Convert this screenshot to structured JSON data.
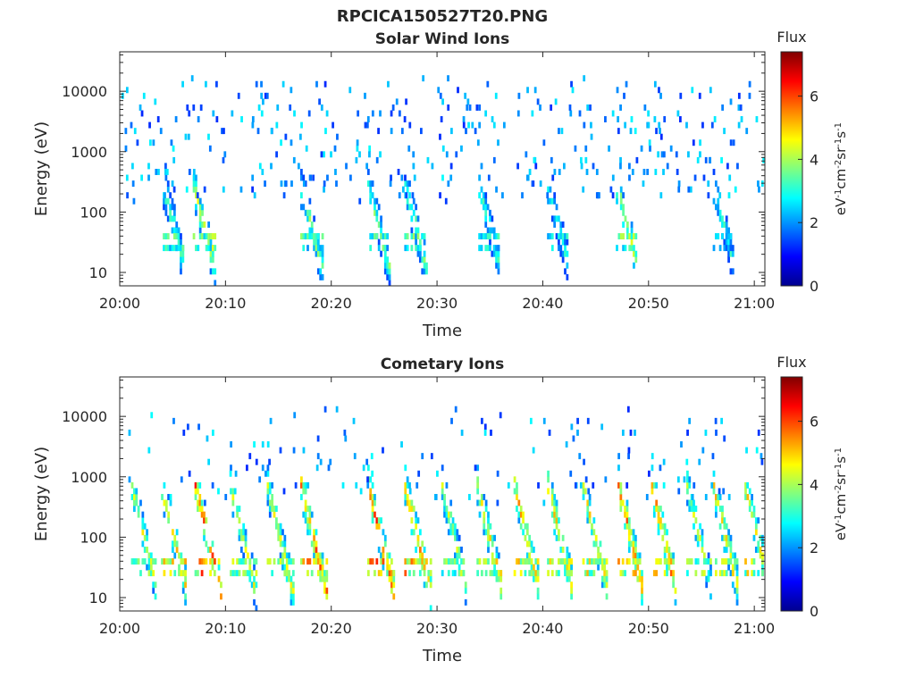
{
  "figure_title": "RPCICA150527T20.PNG",
  "chart_data": [
    {
      "type": "heatmap",
      "title": "Solar Wind Ions",
      "xlabel": "Time",
      "ylabel": "Energy (eV)",
      "x_range": [
        "20:00",
        "21:01"
      ],
      "x_ticks": [
        "20:00",
        "20:10",
        "20:20",
        "20:30",
        "20:40",
        "20:50",
        "21:00"
      ],
      "y_scale": "log",
      "y_range": [
        6,
        45000
      ],
      "y_ticks": [
        "10",
        "100",
        "1000",
        "10000"
      ],
      "colorbar": {
        "title": "Flux",
        "label": "eV-1cm-2sr-1s-1",
        "range": [
          0,
          7.4
        ],
        "ticks": [
          "0",
          "2",
          "4",
          "6"
        ],
        "colormap": "jet"
      },
      "bursts": [
        {
          "t": "20:04:40",
          "peak_flux": 3.8
        },
        {
          "t": "20:07:30",
          "peak_flux": 4.5
        },
        {
          "t": "20:17:40",
          "peak_flux": 3.9
        },
        {
          "t": "20:24:00",
          "peak_flux": 3.8
        },
        {
          "t": "20:27:30",
          "peak_flux": 4.0
        },
        {
          "t": "20:34:30",
          "peak_flux": 3.4
        },
        {
          "t": "20:41:00",
          "peak_flux": 3.3
        },
        {
          "t": "20:47:30",
          "peak_flux": 4.4
        },
        {
          "t": "20:56:40",
          "peak_flux": 3.2
        }
      ]
    },
    {
      "type": "heatmap",
      "title": "Cometary Ions",
      "xlabel": "Time",
      "ylabel": "Energy (eV)",
      "x_range": [
        "20:00",
        "21:01"
      ],
      "x_ticks": [
        "20:00",
        "20:10",
        "20:20",
        "20:30",
        "20:40",
        "20:50",
        "21:00"
      ],
      "y_scale": "log",
      "y_range": [
        6,
        45000
      ],
      "y_ticks": [
        "10",
        "100",
        "1000",
        "10000"
      ],
      "colorbar": {
        "title": "Flux",
        "label": "eV-1cm-2sr-1s-1",
        "range": [
          0,
          7.4
        ],
        "ticks": [
          "0",
          "2",
          "4",
          "6"
        ],
        "colormap": "jet"
      },
      "bursts": [
        {
          "t": "20:01:40",
          "peak_flux": 4.6
        },
        {
          "t": "20:04:30",
          "peak_flux": 5.4
        },
        {
          "t": "20:07:40",
          "peak_flux": 6.4
        },
        {
          "t": "20:11:00",
          "peak_flux": 4.6
        },
        {
          "t": "20:14:30",
          "peak_flux": 4.6
        },
        {
          "t": "20:17:40",
          "peak_flux": 5.9
        },
        {
          "t": "20:24:00",
          "peak_flux": 6.3
        },
        {
          "t": "20:27:30",
          "peak_flux": 6.0
        },
        {
          "t": "20:31:00",
          "peak_flux": 4.4
        },
        {
          "t": "20:34:20",
          "peak_flux": 5.2
        },
        {
          "t": "20:37:50",
          "peak_flux": 5.4
        },
        {
          "t": "20:41:00",
          "peak_flux": 5.4
        },
        {
          "t": "20:44:20",
          "peak_flux": 5.2
        },
        {
          "t": "20:47:40",
          "peak_flux": 6.0
        },
        {
          "t": "20:50:50",
          "peak_flux": 5.9
        },
        {
          "t": "20:54:10",
          "peak_flux": 4.4
        },
        {
          "t": "20:56:40",
          "peak_flux": 5.2
        },
        {
          "t": "20:59:40",
          "peak_flux": 5.2
        }
      ]
    }
  ]
}
